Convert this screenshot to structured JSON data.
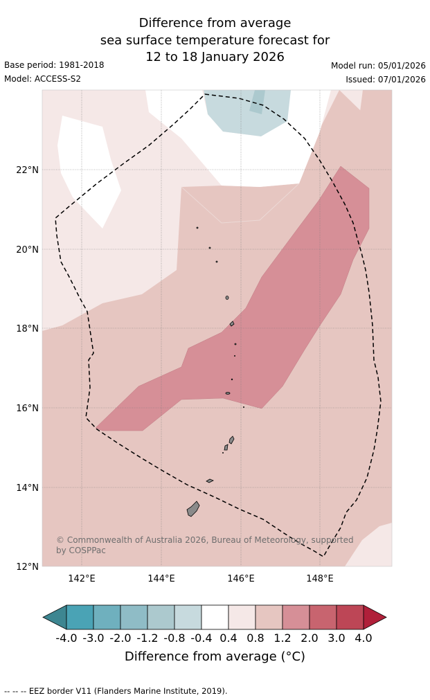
{
  "title": {
    "line1": "Difference from average",
    "line2": "sea surface temperature forecast for",
    "line3": "12 to 18 January 2026"
  },
  "meta": {
    "base_period": "Base period: 1981-2018",
    "model": "Model: ACCESS-S2",
    "model_run": "Model run: 05/01/2026",
    "issued": "Issued: 07/01/2026"
  },
  "axes": {
    "lat_labels": [
      "22°N",
      "20°N",
      "18°N",
      "16°N",
      "14°N",
      "12°N"
    ],
    "lon_labels": [
      "142°E",
      "144°E",
      "146°E",
      "148°E"
    ]
  },
  "copyright": {
    "line1": "© Commonwealth of Australia 2026, Bureau of Meteorology, supported",
    "line2": "by COSPPac"
  },
  "colorbar": {
    "tick_labels": [
      "-4.0",
      "-3.0",
      "-2.0",
      "-1.2",
      "-0.8",
      "-0.4",
      "0.4",
      "0.8",
      "1.2",
      "2.0",
      "3.0",
      "4.0"
    ],
    "colors": [
      "#4aa3b5",
      "#6fb0be",
      "#8fbcc6",
      "#acc9ce",
      "#c7dade",
      "#ffffff",
      "#f5e8e7",
      "#e6c6c1",
      "#d68f97",
      "#c8646f",
      "#bd4656"
    ],
    "low_extension_color": "#3d8691",
    "high_extension_color": "#b0203a",
    "unit_label": "Difference from average (°C)"
  },
  "footer": "--  --  -- EEZ border V11 (Flanders Marine Institute, 2019)."
}
